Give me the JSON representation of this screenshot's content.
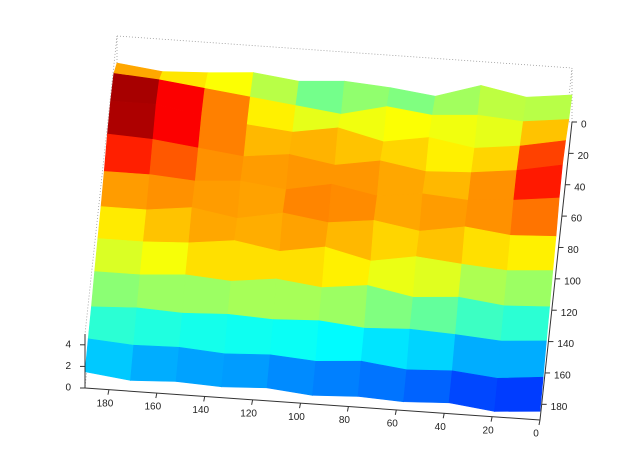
{
  "chart_data": {
    "type": "surface",
    "colormap": "jet",
    "clim": [
      0,
      4.5
    ],
    "x": [
      0,
      19,
      38,
      57,
      76,
      95,
      114,
      133,
      152,
      171,
      190
    ],
    "y": [
      0,
      19,
      38,
      57,
      76,
      95,
      114,
      133,
      152,
      171,
      190
    ],
    "z": [
      [
        2.5,
        2.0,
        2.8,
        1.5,
        2.0,
        2.3,
        2.0,
        2.5,
        2.2,
        2.0,
        2.5
      ],
      [
        3.0,
        2.5,
        2.8,
        2.5,
        3.0,
        2.0,
        2.5,
        3.0,
        3.5,
        4.0,
        4.3
      ],
      [
        3.8,
        3.0,
        2.5,
        3.2,
        2.5,
        3.5,
        2.8,
        3.2,
        3.8,
        4.5,
        4.5
      ],
      [
        4.3,
        3.5,
        3.0,
        2.8,
        3.5,
        2.8,
        3.5,
        3.0,
        3.5,
        4.0,
        4.2
      ],
      [
        4.0,
        3.5,
        3.2,
        3.5,
        3.0,
        3.8,
        3.0,
        3.5,
        3.2,
        3.5,
        3.5
      ],
      [
        3.2,
        3.0,
        3.5,
        2.8,
        3.5,
        3.0,
        3.6,
        2.8,
        3.5,
        3.0,
        3.0
      ],
      [
        2.8,
        2.5,
        2.8,
        3.2,
        2.5,
        3.5,
        2.8,
        3.5,
        3.0,
        2.8,
        2.8
      ],
      [
        2.2,
        2.0,
        2.5,
        2.2,
        3.0,
        2.5,
        3.0,
        2.5,
        2.8,
        2.5,
        2.5
      ],
      [
        1.8,
        1.5,
        1.8,
        2.0,
        1.8,
        2.2,
        2.0,
        2.2,
        2.0,
        2.2,
        2.0
      ],
      [
        1.2,
        0.8,
        1.2,
        1.0,
        1.5,
        1.2,
        1.5,
        1.3,
        1.6,
        1.5,
        1.8
      ],
      [
        0.8,
        0.5,
        1.0,
        0.8,
        1.0,
        0.8,
        1.2,
        1.0,
        1.2,
        1.0,
        1.5
      ]
    ],
    "xlim": [
      0,
      190
    ],
    "ylim": [
      0,
      190
    ],
    "zlim": [
      0,
      5
    ],
    "xticks": [
      0,
      20,
      40,
      60,
      80,
      100,
      120,
      140,
      160,
      180
    ],
    "yticks": [
      0,
      20,
      40,
      60,
      80,
      100,
      120,
      140,
      160,
      180
    ],
    "zticks": [
      0,
      2,
      4
    ]
  }
}
